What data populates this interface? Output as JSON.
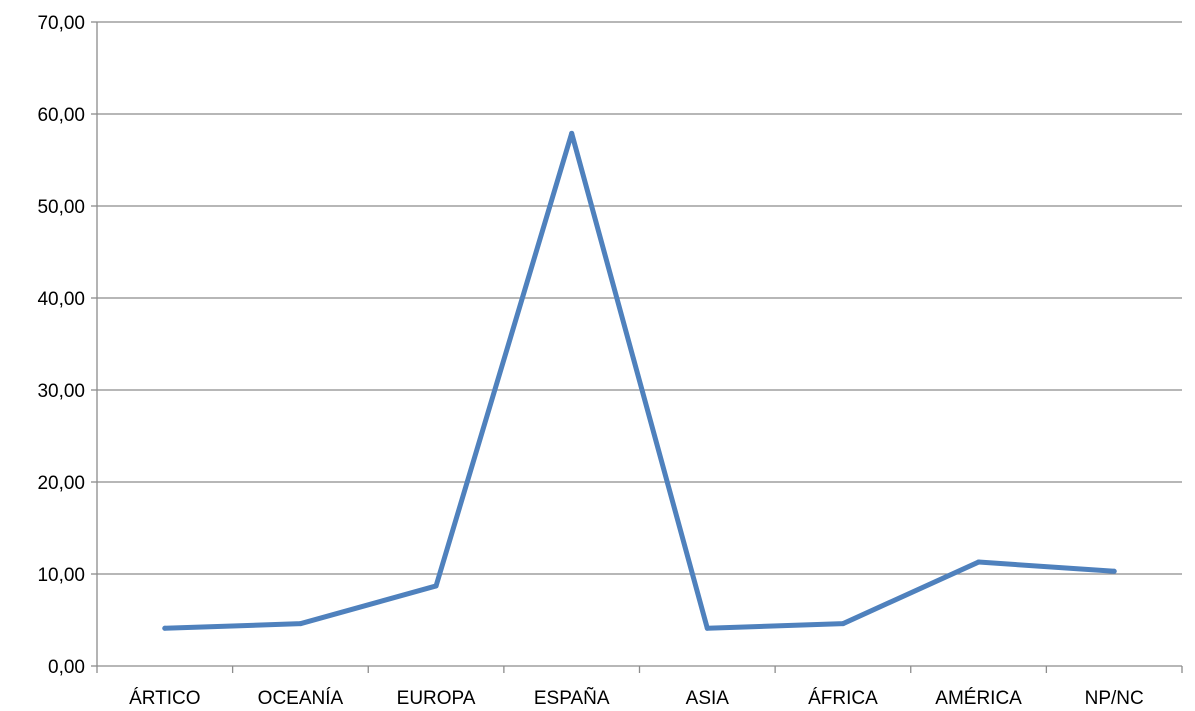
{
  "chart_data": {
    "type": "line",
    "title": "",
    "xlabel": "",
    "ylabel": "",
    "categories": [
      "ÁRTICO",
      "OCEANÍA",
      "EUROPA",
      "ESPAÑA",
      "ASIA",
      "ÁFRICA",
      "AMÉRICA",
      "NP/NC"
    ],
    "series": [
      {
        "values": [
          4.1,
          4.6,
          8.7,
          57.9,
          4.1,
          4.6,
          11.3,
          10.3
        ]
      }
    ],
    "ylim": [
      0,
      70
    ],
    "yticks": [
      "0,00",
      "10,00",
      "20,00",
      "30,00",
      "40,00",
      "50,00",
      "60,00",
      "70,00"
    ],
    "grid": true,
    "legend": "none",
    "colors": {
      "line": "#4f81bd",
      "grid": "#8c8c8c",
      "axis": "#8c8c8c"
    }
  }
}
